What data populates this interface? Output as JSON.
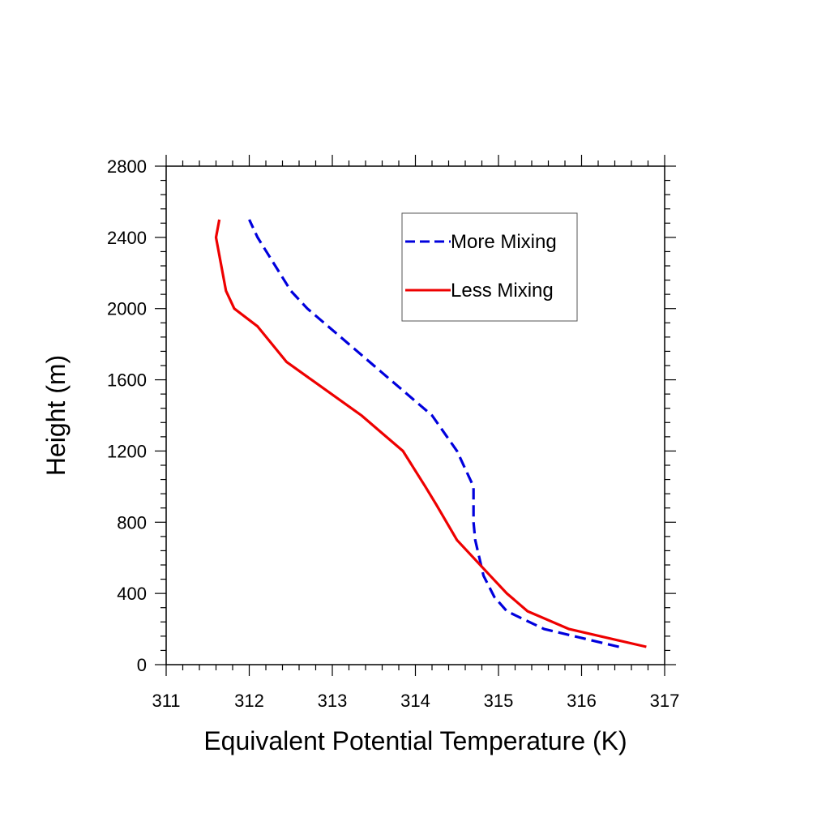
{
  "chart_data": {
    "type": "line",
    "xlabel": "Equivalent Potential Temperature (K)",
    "ylabel": "Height (m)",
    "xlim": [
      311,
      317
    ],
    "ylim": [
      0,
      2800
    ],
    "x_ticks": [
      "311",
      "312",
      "313",
      "314",
      "315",
      "316",
      "317"
    ],
    "y_ticks": [
      "0",
      "400",
      "800",
      "1200",
      "1600",
      "2000",
      "2400",
      "2800"
    ],
    "legend_position": "top-right",
    "grid": false,
    "series": [
      {
        "name": "More Mixing",
        "color": "#0000dd",
        "style": "dashed",
        "points": [
          [
            316.45,
            100
          ],
          [
            315.55,
            200
          ],
          [
            315.1,
            300
          ],
          [
            314.95,
            380
          ],
          [
            314.82,
            500
          ],
          [
            314.77,
            600
          ],
          [
            314.72,
            700
          ],
          [
            314.7,
            800
          ],
          [
            314.7,
            1000
          ],
          [
            314.5,
            1200
          ],
          [
            314.2,
            1400
          ],
          [
            313.7,
            1600
          ],
          [
            313.2,
            1800
          ],
          [
            312.7,
            2000
          ],
          [
            312.5,
            2100
          ],
          [
            312.1,
            2400
          ],
          [
            312.0,
            2500
          ]
        ]
      },
      {
        "name": "Less Mixing",
        "color": "#ee0000",
        "style": "solid",
        "points": [
          [
            316.78,
            100
          ],
          [
            315.85,
            200
          ],
          [
            315.35,
            300
          ],
          [
            315.1,
            400
          ],
          [
            314.9,
            500
          ],
          [
            314.7,
            600
          ],
          [
            314.5,
            700
          ],
          [
            314.25,
            900
          ],
          [
            314.12,
            1000
          ],
          [
            313.85,
            1200
          ],
          [
            313.6,
            1300
          ],
          [
            313.35,
            1400
          ],
          [
            312.75,
            1600
          ],
          [
            312.45,
            1700
          ],
          [
            312.1,
            1900
          ],
          [
            311.82,
            2000
          ],
          [
            311.72,
            2100
          ],
          [
            311.6,
            2400
          ],
          [
            311.64,
            2500
          ]
        ]
      }
    ]
  }
}
